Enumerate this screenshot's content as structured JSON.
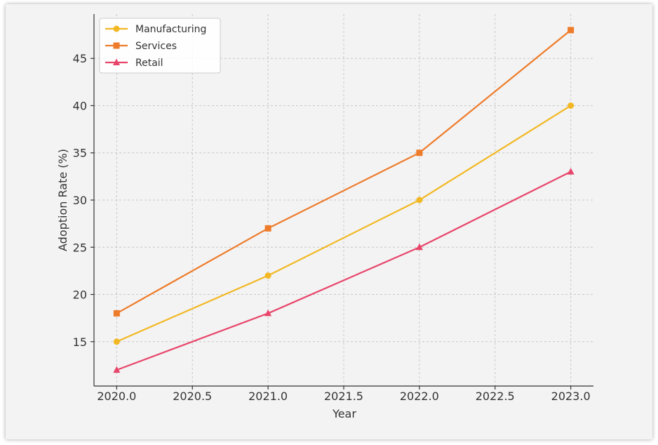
{
  "chart_data": {
    "type": "line",
    "xlabel": "Year",
    "ylabel": "Adoption Rate (%)",
    "x": [
      2020.0,
      2021.0,
      2022.0,
      2023.0
    ],
    "xticks": [
      "2020.0",
      "2020.5",
      "2021.0",
      "2021.5",
      "2022.0",
      "2022.5",
      "2023.0"
    ],
    "xtick_values": [
      2020.0,
      2020.5,
      2021.0,
      2021.5,
      2022.0,
      2022.5,
      2023.0
    ],
    "yticks": [
      15,
      20,
      25,
      30,
      35,
      40,
      45
    ],
    "xlim": [
      2019.85,
      2023.15
    ],
    "ylim": [
      10.3,
      49.7
    ],
    "grid": true,
    "legend_position": "upper-left",
    "series": [
      {
        "name": "Manufacturing",
        "values": [
          15,
          22,
          30,
          40
        ],
        "color": "#f2b823",
        "marker": "circle"
      },
      {
        "name": "Services",
        "values": [
          18,
          27,
          35,
          48
        ],
        "color": "#ee7b2a",
        "marker": "square"
      },
      {
        "name": "Retail",
        "values": [
          12,
          18,
          25,
          33
        ],
        "color": "#e8456a",
        "marker": "triangle"
      }
    ]
  }
}
